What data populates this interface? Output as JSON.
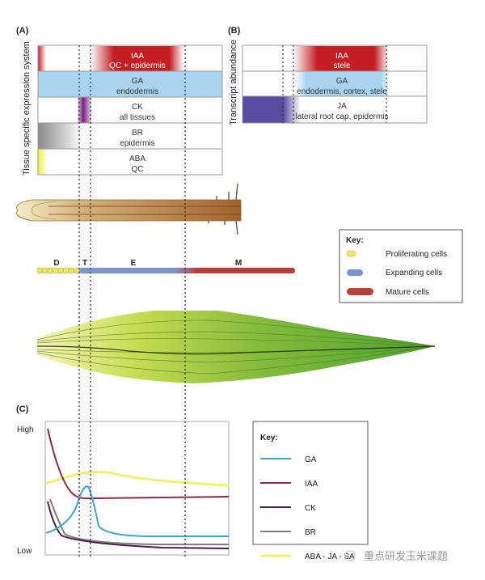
{
  "panel_a": {
    "label": "(A)",
    "axis_label": "Tissue specific expression system",
    "rows": [
      {
        "hormone": "IAA",
        "tissue": "QC + epidermis",
        "color": "#c41e24"
      },
      {
        "hormone": "GA",
        "tissue": "endodermis",
        "color": "#a9d4f0"
      },
      {
        "hormone": "CK",
        "tissue": "all tissues",
        "color": "#7a1e7e"
      },
      {
        "hormone": "BR",
        "tissue": "epidermis",
        "color": "#8a8a8a"
      },
      {
        "hormone": "ABA",
        "tissue": "QC",
        "color": "#f4ee3a"
      }
    ]
  },
  "panel_b": {
    "label": "(B)",
    "axis_label": "Transcript abundance",
    "rows": [
      {
        "hormone": "IAA",
        "tissue": "stele",
        "color": "#c41e24"
      },
      {
        "hormone": "GA",
        "tissue": "endodermis, cortex, stele",
        "color": "#a9d4f0"
      },
      {
        "hormone": "JA",
        "tissue": "lateral root cap, epidermis",
        "color": "#5a4aa0"
      }
    ]
  },
  "zones": {
    "d": "D",
    "t": "T",
    "e": "E",
    "m": "M"
  },
  "cell_key": {
    "title": "Key:",
    "items": [
      {
        "label": "Proliferating cells",
        "color": "#eeea50"
      },
      {
        "label": "Expanding cells",
        "color": "#7a95cc"
      },
      {
        "label": "Mature cells",
        "color": "#b6403e"
      }
    ]
  },
  "panel_c": {
    "label": "(C)",
    "y_high": "High",
    "y_low": "Low",
    "key_title": "Key:",
    "series": [
      {
        "name": "GA",
        "color": "#3fa6c8"
      },
      {
        "name": "IAA",
        "color": "#8a2d3c"
      },
      {
        "name": "CK",
        "color": "#4a1f4a"
      },
      {
        "name": "BR",
        "color": "#7d7d7d"
      },
      {
        "name": "ABA - JA - SA",
        "color": "#eef26a"
      }
    ]
  },
  "watermark": "重点研发玉米课题"
}
